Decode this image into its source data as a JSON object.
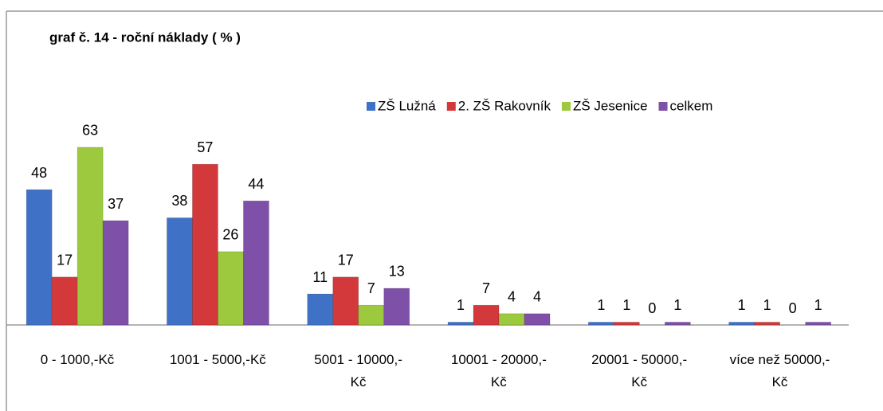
{
  "chart_data": {
    "type": "bar",
    "title": "graf č. 14 - roční náklady ( % )",
    "categories": [
      "0 - 1000,-Kč",
      "1001 - 5000,-Kč",
      "5001 - 10000,-\nKč",
      "10001 - 20000,-\nKč",
      "20001 - 50000,-\nKč",
      "více než 50000,-\nKč"
    ],
    "series": [
      {
        "name": "ZŠ Lužná",
        "color": "#3f72c6",
        "values": [
          48,
          38,
          11,
          1,
          1,
          1
        ]
      },
      {
        "name": "2. ZŠ Rakovník",
        "color": "#d3393a",
        "values": [
          17,
          57,
          17,
          7,
          1,
          1
        ]
      },
      {
        "name": "ZŠ Jesenice",
        "color": "#9cc93e",
        "values": [
          63,
          26,
          7,
          4,
          0,
          0
        ]
      },
      {
        "name": "celkem",
        "color": "#7e50a8",
        "values": [
          37,
          44,
          13,
          4,
          1,
          1
        ]
      }
    ],
    "legend": "top-right"
  }
}
